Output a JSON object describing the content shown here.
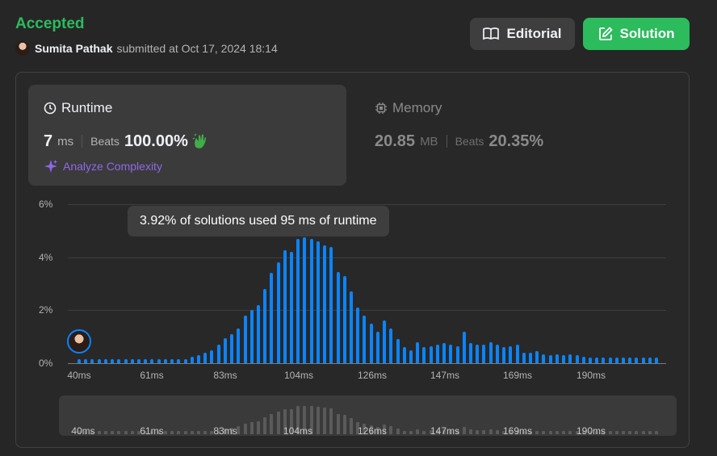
{
  "header": {
    "status": "Accepted",
    "user": "Sumita Pathak",
    "submitted_text": "submitted at Oct 17, 2024 18:14",
    "editorial_label": "Editorial",
    "solution_label": "Solution",
    "colors": {
      "accepted": "#2cbb5d",
      "accent": "#0a84ff"
    }
  },
  "runtime": {
    "title": "Runtime",
    "value": "7",
    "unit": "ms",
    "beats_label": "Beats",
    "beats_value": "100.00%",
    "analyze_label": "Analyze Complexity"
  },
  "memory": {
    "title": "Memory",
    "value": "20.85",
    "unit": "MB",
    "beats_label": "Beats",
    "beats_value": "20.35%"
  },
  "tooltip": "3.92% of solutions used 95 ms of runtime",
  "chart_data": {
    "type": "bar",
    "y_ticks": [
      "6%",
      "4%",
      "2%",
      "0%"
    ],
    "x_ticks": [
      "40ms",
      "61ms",
      "83ms",
      "104ms",
      "126ms",
      "147ms",
      "169ms",
      "190ms"
    ],
    "ylim": [
      0,
      6
    ],
    "values": [
      0.15,
      0.15,
      0.15,
      0.15,
      0.15,
      0.15,
      0.15,
      0.15,
      0.15,
      0.15,
      0.15,
      0.15,
      0.15,
      0.15,
      0.15,
      0.15,
      0.15,
      0.25,
      0.3,
      0.4,
      0.5,
      0.7,
      0.95,
      1.1,
      1.3,
      1.8,
      2.0,
      2.2,
      2.8,
      3.4,
      3.8,
      4.25,
      4.2,
      4.7,
      4.75,
      4.7,
      4.6,
      4.45,
      4.4,
      3.45,
      3.3,
      2.7,
      2.1,
      1.8,
      1.5,
      1.2,
      1.6,
      1.3,
      0.9,
      0.6,
      0.5,
      0.8,
      0.6,
      0.65,
      0.7,
      0.75,
      0.7,
      0.65,
      1.2,
      0.75,
      0.7,
      0.7,
      0.8,
      0.7,
      0.6,
      0.65,
      0.7,
      0.4,
      0.4,
      0.45,
      0.35,
      0.3,
      0.35,
      0.3,
      0.35,
      0.3,
      0.25,
      0.2,
      0.2,
      0.2,
      0.2,
      0.2,
      0.2,
      0.2,
      0.2,
      0.2,
      0.2,
      0.2
    ]
  }
}
